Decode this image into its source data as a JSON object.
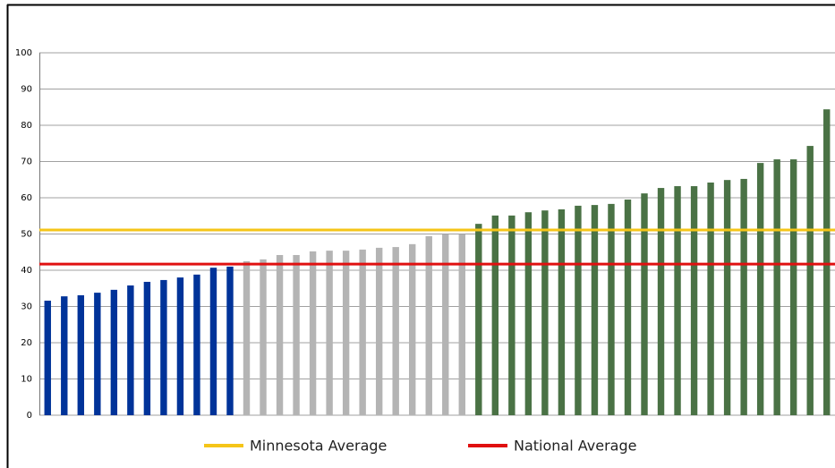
{
  "chart_data": {
    "type": "bar",
    "values": [
      31.6,
      32.8,
      33.1,
      33.8,
      34.6,
      35.8,
      36.8,
      37.3,
      38.0,
      38.8,
      40.7,
      41.0,
      42.5,
      43.0,
      44.2,
      44.2,
      45.2,
      45.4,
      45.4,
      45.7,
      46.2,
      46.4,
      47.2,
      49.4,
      49.9,
      49.9,
      52.8,
      55.1,
      55.1,
      56.0,
      56.5,
      56.8,
      57.8,
      58.0,
      58.3,
      59.5,
      61.2,
      62.7,
      63.2,
      63.2,
      64.2,
      64.9,
      65.2,
      69.6,
      70.6,
      70.6,
      74.3,
      84.4
    ],
    "colors": [
      "#003399",
      "#003399",
      "#003399",
      "#003399",
      "#003399",
      "#003399",
      "#003399",
      "#003399",
      "#003399",
      "#003399",
      "#003399",
      "#003399",
      "#b4b4b4",
      "#b4b4b4",
      "#b4b4b4",
      "#b4b4b4",
      "#b4b4b4",
      "#b4b4b4",
      "#b4b4b4",
      "#b4b4b4",
      "#b4b4b4",
      "#b4b4b4",
      "#b4b4b4",
      "#b4b4b4",
      "#b4b4b4",
      "#b4b4b4",
      "#4a7245",
      "#4a7245",
      "#4a7245",
      "#4a7245",
      "#4a7245",
      "#4a7245",
      "#4a7245",
      "#4a7245",
      "#4a7245",
      "#4a7245",
      "#4a7245",
      "#4a7245",
      "#4a7245",
      "#4a7245",
      "#4a7245",
      "#4a7245",
      "#4a7245",
      "#4a7245",
      "#4a7245",
      "#4a7245",
      "#4a7245",
      "#4a7245"
    ],
    "reference_lines": [
      {
        "name": "Minnesota Average",
        "value": 51.1,
        "color": "#f5c518"
      },
      {
        "name": "National Average",
        "value": 41.7,
        "color": "#e01010"
      }
    ],
    "ylim": [
      0,
      100
    ],
    "yticks": [
      0,
      10,
      20,
      30,
      40,
      50,
      60,
      70,
      80,
      90,
      100
    ],
    "grid": true
  }
}
